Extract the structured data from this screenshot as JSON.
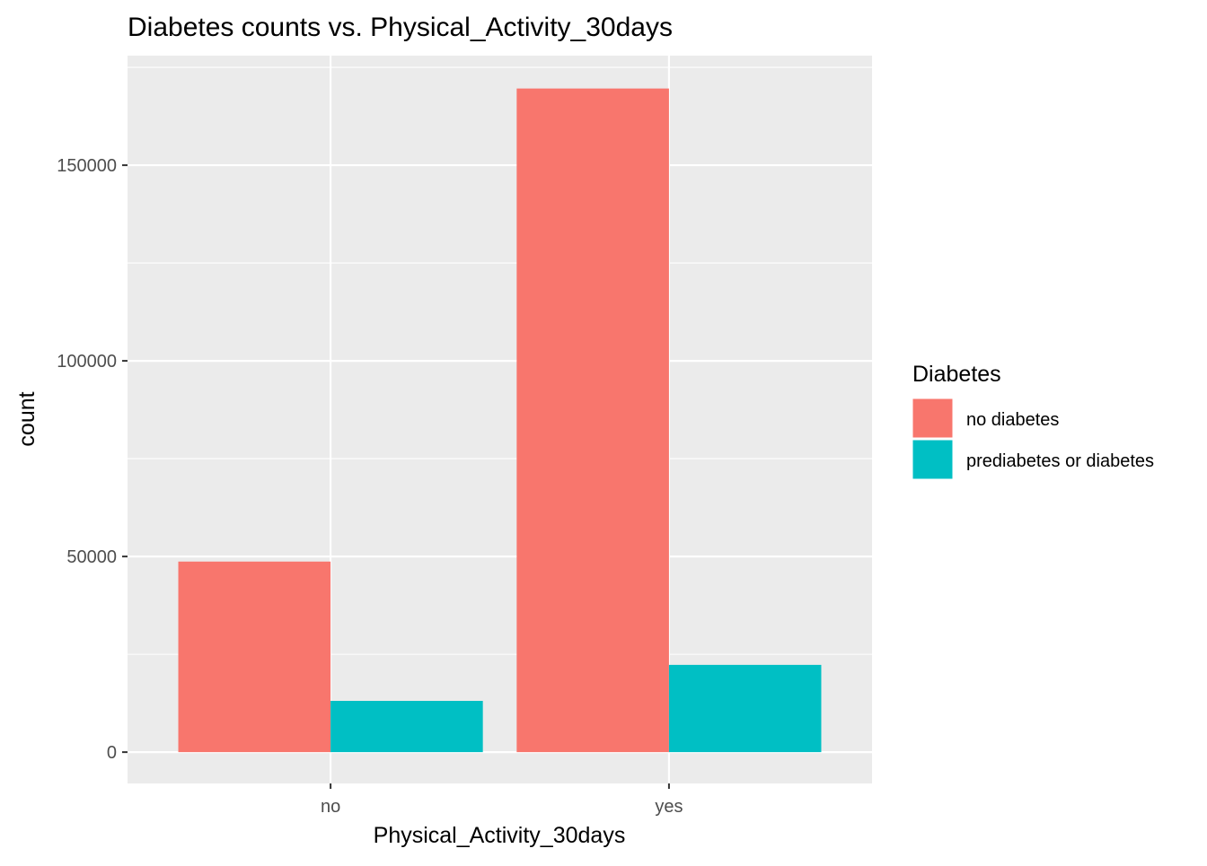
{
  "chart_data": {
    "type": "bar",
    "title": "Diabetes counts vs. Physical_Activity_30days",
    "xlabel": "Physical_Activity_30days",
    "ylabel": "count",
    "categories": [
      "no",
      "yes"
    ],
    "series": [
      {
        "name": "no diabetes",
        "color": "#F8766D",
        "values": [
          48700,
          169600
        ]
      },
      {
        "name": "prediabetes or diabetes",
        "color": "#00BFC4",
        "values": [
          13100,
          22300
        ]
      }
    ],
    "yticks": [
      0,
      50000,
      100000,
      150000
    ],
    "ytick_labels": [
      "0",
      "50000",
      "100000",
      "150000"
    ],
    "ylim": [
      -8000,
      178000
    ],
    "grid": true,
    "legend": {
      "title": "Diabetes",
      "position": "right",
      "entries": [
        "no diabetes",
        "prediabetes or diabetes"
      ]
    },
    "colors": {
      "panel_bg": "#EBEBEB",
      "grid": "#FFFFFF",
      "axis_text": "#4D4D4D"
    }
  }
}
